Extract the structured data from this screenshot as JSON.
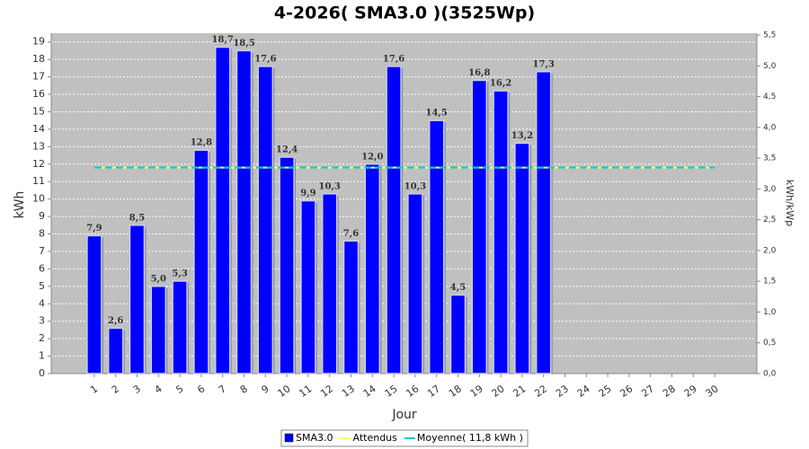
{
  "chart_data": {
    "type": "bar",
    "title": "4-2026( SMA3.0 )(3525Wp)",
    "x_label": "Jour",
    "y_label": "kWh",
    "y2_label": "kWh/kWp",
    "categories": [
      "1",
      "2",
      "3",
      "4",
      "5",
      "6",
      "7",
      "8",
      "9",
      "10",
      "11",
      "12",
      "13",
      "14",
      "15",
      "16",
      "17",
      "18",
      "19",
      "20",
      "21",
      "22",
      "23",
      "24",
      "25",
      "26",
      "27",
      "28",
      "29",
      "30"
    ],
    "series": [
      {
        "name": "SMA3.0",
        "type": "bar",
        "color": "#0000ff",
        "values": [
          7.9,
          2.6,
          8.5,
          5.0,
          5.3,
          12.8,
          18.7,
          18.5,
          17.6,
          12.4,
          9.9,
          10.3,
          7.6,
          12.0,
          17.6,
          10.3,
          14.5,
          4.5,
          16.8,
          16.2,
          13.2,
          17.3,
          0,
          0,
          0,
          0,
          0,
          0,
          0,
          0
        ],
        "value_labels": [
          "7,9",
          "2,6",
          "8,5",
          "5,0",
          "5,3",
          "12,8",
          "18,7",
          "18,5",
          "17,6",
          "12,4",
          "9,9",
          "10,3",
          "7,6",
          "12,0",
          "17,6",
          "10,3",
          "14,5",
          "4,5",
          "16,8",
          "16,2",
          "13,2",
          "17,3",
          null,
          null,
          null,
          null,
          null,
          null,
          null,
          null
        ]
      },
      {
        "name": "Attendus",
        "type": "line",
        "color": "#ffff66",
        "values": [
          11.8,
          11.8,
          11.8,
          11.8,
          11.8,
          11.8,
          11.8,
          11.8,
          11.8,
          11.8,
          11.8,
          11.8,
          11.8,
          11.8,
          11.8,
          11.8,
          11.8,
          11.8,
          11.8,
          11.8,
          11.8,
          11.8,
          11.8,
          11.8,
          11.8,
          11.8,
          11.8,
          11.8,
          11.8,
          11.8
        ]
      },
      {
        "name": "Moyenne( 11,8 kWh )",
        "type": "line",
        "color": "#00cccc",
        "values": [
          11.8,
          11.8,
          11.8,
          11.8,
          11.8,
          11.8,
          11.8,
          11.8,
          11.8,
          11.8,
          11.8,
          11.8,
          11.8,
          11.8,
          11.8,
          11.8,
          11.8,
          11.8,
          11.8,
          11.8,
          11.8,
          11.8,
          11.8,
          11.8,
          11.8,
          11.8,
          11.8,
          11.8,
          11.8,
          11.8
        ]
      }
    ],
    "ylim": [
      0,
      19.5
    ],
    "yticks": [
      0,
      1,
      2,
      3,
      4,
      5,
      6,
      7,
      8,
      9,
      10,
      11,
      12,
      13,
      14,
      15,
      16,
      17,
      18,
      19
    ],
    "y2lim": [
      0,
      5.53
    ],
    "y2ticks": [
      {
        "value": 0,
        "label": "0,0"
      },
      {
        "value": 0.5,
        "label": "0,5"
      },
      {
        "value": 1,
        "label": "1,0"
      },
      {
        "value": 1.5,
        "label": "1,5"
      },
      {
        "value": 2,
        "label": "2,0"
      },
      {
        "value": 2.5,
        "label": "2,5"
      },
      {
        "value": 3,
        "label": "3,0"
      },
      {
        "value": 3.5,
        "label": "3,5"
      },
      {
        "value": 4,
        "label": "4,0"
      },
      {
        "value": 4.5,
        "label": "4,5"
      },
      {
        "value": 5,
        "label": "5,0"
      },
      {
        "value": 5.5,
        "label": "5,5"
      }
    ],
    "grid": true,
    "legend": "bottom"
  }
}
